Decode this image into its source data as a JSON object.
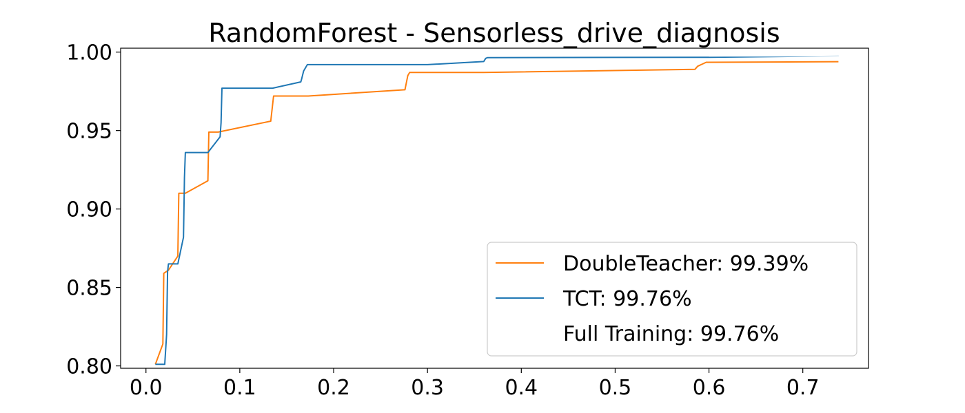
{
  "chart_data": {
    "type": "line",
    "title": "RandomForest - Sensorless_drive_diagnosis",
    "xlabel": "",
    "ylabel": "",
    "xlim": [
      -0.027,
      0.77
    ],
    "ylim": [
      0.7985,
      1.0025
    ],
    "xticks": [
      0.0,
      0.1,
      0.2,
      0.3,
      0.4,
      0.5,
      0.6,
      0.7
    ],
    "xtick_labels": [
      "0.0",
      "0.1",
      "0.2",
      "0.3",
      "0.4",
      "0.5",
      "0.6",
      "0.7"
    ],
    "yticks": [
      0.8,
      0.85,
      0.9,
      0.95,
      1.0
    ],
    "ytick_labels": [
      "0.80",
      "0.85",
      "0.90",
      "0.95",
      "1.00"
    ],
    "grid": false,
    "legend": {
      "position": "lower-right",
      "entries": [
        "DoubleTeacher: 99.39%",
        "TCT: 99.76%",
        "Full Training: 99.76%"
      ]
    },
    "series": [
      {
        "name": "DoubleTeacher: 99.39%",
        "color": "#ff7f0e",
        "x": [
          0.01,
          0.018,
          0.019,
          0.024,
          0.034,
          0.035,
          0.042,
          0.066,
          0.067,
          0.077,
          0.133,
          0.136,
          0.173,
          0.276,
          0.279,
          0.281,
          0.36,
          0.585,
          0.588,
          0.597,
          0.738
        ],
        "y": [
          0.801,
          0.814,
          0.859,
          0.861,
          0.87,
          0.91,
          0.91,
          0.918,
          0.949,
          0.949,
          0.956,
          0.972,
          0.972,
          0.976,
          0.985,
          0.987,
          0.987,
          0.989,
          0.991,
          0.9935,
          0.9939
        ]
      },
      {
        "name": "TCT: 99.76%",
        "color": "#1f77b4",
        "x": [
          0.01,
          0.02,
          0.022,
          0.023,
          0.024,
          0.034,
          0.04,
          0.041,
          0.042,
          0.066,
          0.079,
          0.08,
          0.081,
          0.135,
          0.165,
          0.166,
          0.168,
          0.17,
          0.172,
          0.3,
          0.36,
          0.362,
          0.364,
          0.6,
          0.738
        ],
        "y": [
          0.801,
          0.801,
          0.82,
          0.86,
          0.865,
          0.865,
          0.882,
          0.92,
          0.936,
          0.936,
          0.946,
          0.955,
          0.977,
          0.977,
          0.981,
          0.983,
          0.988,
          0.99,
          0.992,
          0.992,
          0.994,
          0.996,
          0.9965,
          0.9967,
          0.9976
        ]
      },
      {
        "name": "Full Training: 99.76%",
        "color": "#ffffff",
        "x": [
          0.6,
          0.738
        ],
        "y": [
          0.9976,
          0.9976
        ]
      }
    ]
  }
}
